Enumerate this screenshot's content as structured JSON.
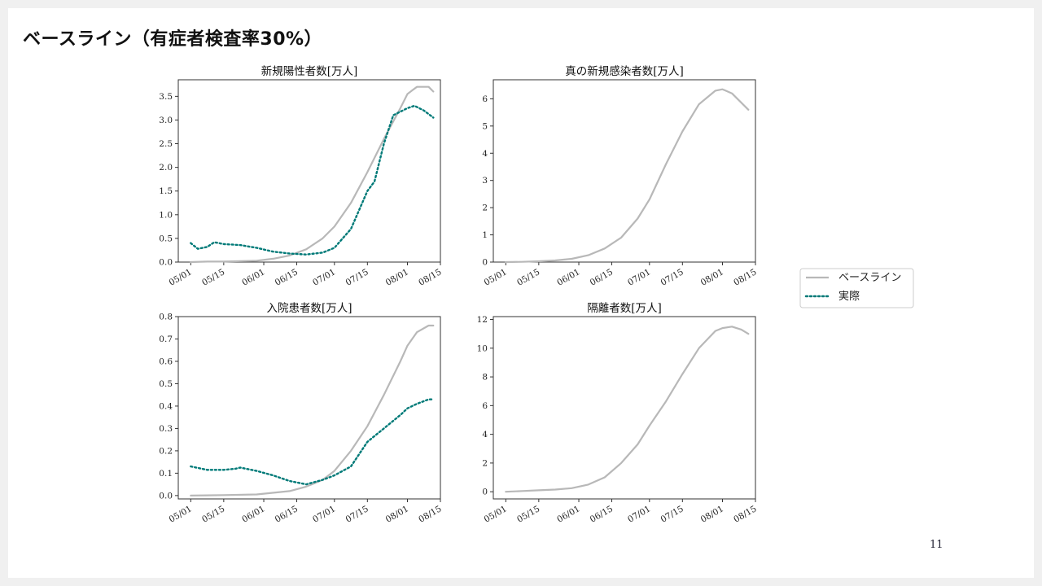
{
  "slide": {
    "title": "ベースライン（有症者検査率30%）",
    "page_number": "11"
  },
  "legend": {
    "items": [
      {
        "label": "ベースライン",
        "style": "solid",
        "color": "#b8b8b8"
      },
      {
        "label": "実際",
        "style": "dotted",
        "color": "#007a78"
      }
    ]
  },
  "x_tick_labels": [
    "05/01",
    "05/15",
    "06/01",
    "06/15",
    "07/01",
    "07/15",
    "08/01",
    "08/15"
  ],
  "x_tick_days": [
    0,
    14,
    31,
    45,
    61,
    75,
    92,
    106
  ],
  "chart_data": [
    {
      "type": "line",
      "title": "新規陽性者数[万人]",
      "xlim": [
        "05/01",
        "08/15"
      ],
      "ylim": [
        0,
        3.85
      ],
      "yticks": [
        0.0,
        0.5,
        1.0,
        1.5,
        2.0,
        2.5,
        3.0,
        3.5
      ],
      "ytick_labels": [
        "0.0",
        "0.5",
        "1.0",
        "1.5",
        "2.0",
        "2.5",
        "3.0",
        "3.5"
      ],
      "series": [
        {
          "name": "ベースライン",
          "points": [
            [
              "05/01",
              0.0
            ],
            [
              "05/08",
              0.01
            ],
            [
              "05/15",
              0.01
            ],
            [
              "05/22",
              0.02
            ],
            [
              "05/29",
              0.03
            ],
            [
              "06/05",
              0.07
            ],
            [
              "06/12",
              0.14
            ],
            [
              "06/19",
              0.27
            ],
            [
              "06/26",
              0.5
            ],
            [
              "07/01",
              0.75
            ],
            [
              "07/08",
              1.25
            ],
            [
              "07/15",
              1.9
            ],
            [
              "07/22",
              2.6
            ],
            [
              "07/29",
              3.25
            ],
            [
              "08/01",
              3.55
            ],
            [
              "08/05",
              3.7
            ],
            [
              "08/10",
              3.7
            ],
            [
              "08/12",
              3.6
            ]
          ]
        },
        {
          "name": "実際",
          "points": [
            [
              "05/01",
              0.4
            ],
            [
              "05/04",
              0.28
            ],
            [
              "05/08",
              0.32
            ],
            [
              "05/11",
              0.42
            ],
            [
              "05/15",
              0.38
            ],
            [
              "05/22",
              0.36
            ],
            [
              "05/29",
              0.3
            ],
            [
              "06/05",
              0.22
            ],
            [
              "06/12",
              0.18
            ],
            [
              "06/19",
              0.16
            ],
            [
              "06/26",
              0.2
            ],
            [
              "07/01",
              0.3
            ],
            [
              "07/08",
              0.7
            ],
            [
              "07/15",
              1.5
            ],
            [
              "07/18",
              1.7
            ],
            [
              "07/22",
              2.5
            ],
            [
              "07/26",
              3.1
            ],
            [
              "08/01",
              3.25
            ],
            [
              "08/04",
              3.3
            ],
            [
              "08/08",
              3.2
            ],
            [
              "08/12",
              3.05
            ]
          ]
        }
      ]
    },
    {
      "type": "line",
      "title": "真の新規感染者数[万人]",
      "xlim": [
        "05/01",
        "08/15"
      ],
      "ylim": [
        0,
        6.7
      ],
      "yticks": [
        0,
        1,
        2,
        3,
        4,
        5,
        6
      ],
      "ytick_labels": [
        "0",
        "1",
        "2",
        "3",
        "4",
        "5",
        "6"
      ],
      "series": [
        {
          "name": "ベースライン",
          "points": [
            [
              "05/01",
              0.0
            ],
            [
              "05/08",
              0.01
            ],
            [
              "05/15",
              0.03
            ],
            [
              "05/22",
              0.06
            ],
            [
              "05/29",
              0.12
            ],
            [
              "06/05",
              0.25
            ],
            [
              "06/12",
              0.5
            ],
            [
              "06/19",
              0.9
            ],
            [
              "06/26",
              1.6
            ],
            [
              "07/01",
              2.3
            ],
            [
              "07/08",
              3.6
            ],
            [
              "07/15",
              4.8
            ],
            [
              "07/22",
              5.8
            ],
            [
              "07/29",
              6.3
            ],
            [
              "08/01",
              6.35
            ],
            [
              "08/05",
              6.2
            ],
            [
              "08/12",
              5.6
            ]
          ]
        }
      ]
    },
    {
      "type": "line",
      "title": "入院患者数[万人]",
      "xlim": [
        "05/01",
        "08/15"
      ],
      "ylim": [
        -0.015,
        0.8
      ],
      "yticks": [
        0.0,
        0.1,
        0.2,
        0.3,
        0.4,
        0.5,
        0.6,
        0.7,
        0.8
      ],
      "ytick_labels": [
        "0.0",
        "0.1",
        "0.2",
        "0.3",
        "0.4",
        "0.5",
        "0.6",
        "0.7",
        "0.8"
      ],
      "series": [
        {
          "name": "ベースライン",
          "points": [
            [
              "05/01",
              0.0
            ],
            [
              "05/15",
              0.002
            ],
            [
              "05/29",
              0.005
            ],
            [
              "06/12",
              0.02
            ],
            [
              "06/19",
              0.04
            ],
            [
              "06/26",
              0.07
            ],
            [
              "07/01",
              0.11
            ],
            [
              "07/08",
              0.2
            ],
            [
              "07/15",
              0.31
            ],
            [
              "07/22",
              0.45
            ],
            [
              "07/29",
              0.6
            ],
            [
              "08/01",
              0.67
            ],
            [
              "08/05",
              0.73
            ],
            [
              "08/10",
              0.76
            ],
            [
              "08/12",
              0.76
            ]
          ]
        },
        {
          "name": "実際",
          "points": [
            [
              "05/01",
              0.13
            ],
            [
              "05/08",
              0.115
            ],
            [
              "05/15",
              0.115
            ],
            [
              "05/20",
              0.12
            ],
            [
              "05/22",
              0.125
            ],
            [
              "05/29",
              0.11
            ],
            [
              "06/05",
              0.09
            ],
            [
              "06/12",
              0.065
            ],
            [
              "06/19",
              0.05
            ],
            [
              "06/26",
              0.07
            ],
            [
              "07/01",
              0.09
            ],
            [
              "07/08",
              0.13
            ],
            [
              "07/15",
              0.24
            ],
            [
              "07/22",
              0.3
            ],
            [
              "07/29",
              0.36
            ],
            [
              "08/01",
              0.39
            ],
            [
              "08/05",
              0.41
            ],
            [
              "08/10",
              0.43
            ],
            [
              "08/12",
              0.43
            ]
          ]
        }
      ]
    },
    {
      "type": "line",
      "title": "隔離者数[万人]",
      "xlim": [
        "05/01",
        "08/15"
      ],
      "ylim": [
        -0.5,
        12.2
      ],
      "yticks": [
        0,
        2,
        4,
        6,
        8,
        10,
        12
      ],
      "ytick_labels": [
        "0",
        "2",
        "4",
        "6",
        "8",
        "10",
        "12"
      ],
      "series": [
        {
          "name": "ベースライン",
          "points": [
            [
              "05/01",
              0.0
            ],
            [
              "05/08",
              0.05
            ],
            [
              "05/15",
              0.1
            ],
            [
              "05/22",
              0.15
            ],
            [
              "05/29",
              0.25
            ],
            [
              "06/05",
              0.5
            ],
            [
              "06/12",
              1.0
            ],
            [
              "06/19",
              2.0
            ],
            [
              "06/26",
              3.3
            ],
            [
              "07/01",
              4.6
            ],
            [
              "07/08",
              6.3
            ],
            [
              "07/15",
              8.2
            ],
            [
              "07/22",
              10.0
            ],
            [
              "07/29",
              11.2
            ],
            [
              "08/01",
              11.4
            ],
            [
              "08/05",
              11.5
            ],
            [
              "08/09",
              11.3
            ],
            [
              "08/12",
              11.0
            ]
          ]
        }
      ]
    }
  ]
}
